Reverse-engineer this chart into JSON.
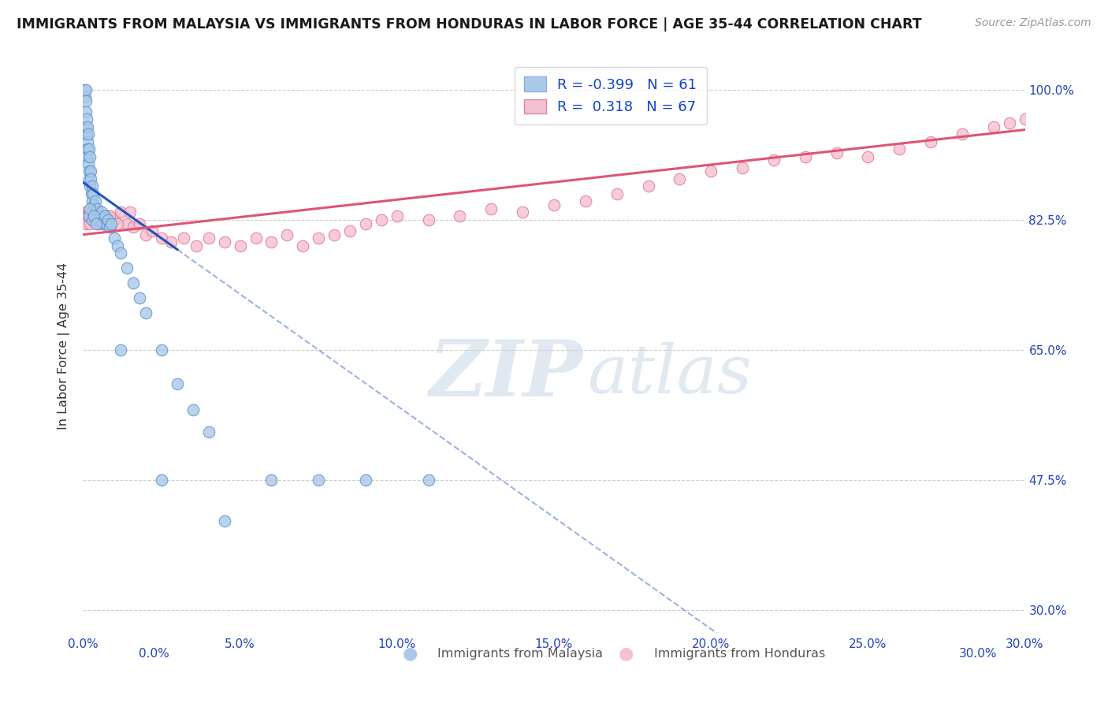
{
  "title": "IMMIGRANTS FROM MALAYSIA VS IMMIGRANTS FROM HONDURAS IN LABOR FORCE | AGE 35-44 CORRELATION CHART",
  "source": "Source: ZipAtlas.com",
  "xlabel_vals": [
    0.0,
    5.0,
    10.0,
    15.0,
    20.0,
    25.0,
    30.0
  ],
  "ylabel_vals": [
    30.0,
    47.5,
    65.0,
    82.5,
    100.0
  ],
  "xlim": [
    0,
    30
  ],
  "ylim": [
    27,
    104
  ],
  "malaysia_R": -0.399,
  "malaysia_N": 61,
  "honduras_R": 0.318,
  "honduras_N": 67,
  "malaysia_color": "#aac8e8",
  "malaysia_edge": "#5590cc",
  "honduras_color": "#f5c0d0",
  "honduras_edge": "#e07090",
  "malaysia_line_color": "#2255bb",
  "honduras_line_color": "#dd5575",
  "legend_R_color": "#1144cc",
  "watermark_zip": "ZIP",
  "watermark_atlas": "atlas",
  "mal_intercept": 87.5,
  "mal_slope": -3.0,
  "hon_intercept": 80.5,
  "hon_slope": 0.47,
  "mal_solid_end": 3.0,
  "mal_data": {
    "x": [
      0.05,
      0.07,
      0.08,
      0.09,
      0.1,
      0.1,
      0.11,
      0.12,
      0.13,
      0.14,
      0.15,
      0.15,
      0.16,
      0.17,
      0.18,
      0.19,
      0.2,
      0.21,
      0.22,
      0.23,
      0.25,
      0.26,
      0.28,
      0.3,
      0.32,
      0.35,
      0.38,
      0.4,
      0.45,
      0.5,
      0.55,
      0.6,
      0.65,
      0.7,
      0.75,
      0.8,
      0.85,
      0.9,
      1.0,
      1.1,
      1.2,
      1.4,
      1.6,
      1.8,
      2.0,
      2.5,
      3.0,
      3.5,
      4.0,
      0.18,
      0.22,
      0.28,
      0.35,
      0.42,
      1.2,
      2.5,
      4.5,
      6.0,
      7.5,
      9.0,
      11.0
    ],
    "y": [
      100.0,
      99.0,
      100.0,
      98.5,
      97.0,
      95.0,
      96.0,
      94.0,
      93.0,
      92.0,
      91.0,
      95.0,
      90.0,
      94.0,
      89.0,
      92.0,
      88.0,
      91.0,
      87.0,
      89.0,
      88.0,
      86.0,
      87.0,
      85.0,
      86.0,
      84.5,
      85.0,
      83.5,
      84.0,
      83.0,
      82.5,
      83.5,
      82.0,
      83.0,
      82.0,
      82.5,
      81.5,
      82.0,
      80.0,
      79.0,
      78.0,
      76.0,
      74.0,
      72.0,
      70.0,
      65.0,
      60.5,
      57.0,
      54.0,
      83.0,
      84.0,
      82.5,
      83.0,
      82.0,
      65.0,
      47.5,
      42.0,
      47.5,
      47.5,
      47.5,
      47.5
    ]
  },
  "hon_data": {
    "x": [
      0.08,
      0.12,
      0.16,
      0.2,
      0.25,
      0.3,
      0.35,
      0.4,
      0.5,
      0.6,
      0.7,
      0.8,
      0.9,
      1.0,
      1.2,
      1.4,
      1.6,
      1.8,
      2.0,
      2.2,
      2.5,
      2.8,
      3.2,
      3.6,
      4.0,
      4.5,
      5.0,
      5.5,
      6.0,
      6.5,
      7.0,
      7.5,
      8.0,
      8.5,
      9.0,
      9.5,
      10.0,
      11.0,
      12.0,
      13.0,
      14.0,
      15.0,
      16.0,
      17.0,
      18.0,
      19.0,
      20.0,
      21.0,
      22.0,
      23.0,
      24.0,
      25.0,
      26.0,
      27.0,
      28.0,
      29.0,
      29.5,
      30.0,
      0.1,
      0.15,
      0.22,
      0.28,
      0.45,
      0.65,
      0.85,
      1.1,
      1.5
    ],
    "y": [
      83.5,
      83.0,
      83.5,
      82.5,
      83.0,
      82.5,
      83.0,
      82.5,
      82.0,
      83.0,
      82.5,
      83.0,
      82.0,
      82.5,
      83.5,
      82.0,
      81.5,
      82.0,
      80.5,
      81.0,
      80.0,
      79.5,
      80.0,
      79.0,
      80.0,
      79.5,
      79.0,
      80.0,
      79.5,
      80.5,
      79.0,
      80.0,
      80.5,
      81.0,
      82.0,
      82.5,
      83.0,
      82.5,
      83.0,
      84.0,
      83.5,
      84.5,
      85.0,
      86.0,
      87.0,
      88.0,
      89.0,
      89.5,
      90.5,
      91.0,
      91.5,
      91.0,
      92.0,
      93.0,
      94.0,
      95.0,
      95.5,
      96.0,
      82.0,
      83.0,
      82.0,
      83.5,
      82.5,
      82.0,
      83.0,
      82.0,
      83.5
    ]
  }
}
